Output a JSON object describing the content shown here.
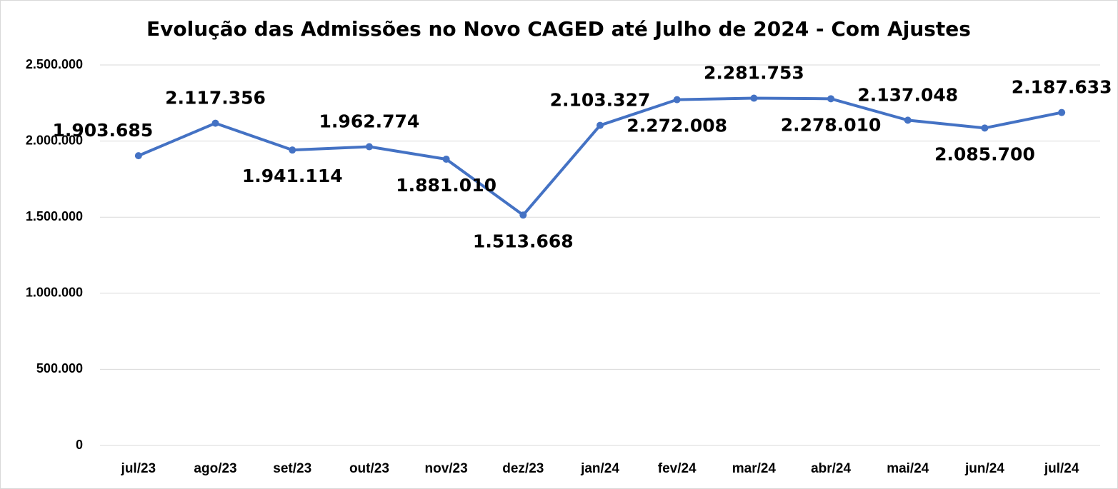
{
  "chart_data": {
    "type": "line",
    "title": "Evolução das Admissões no Novo CAGED até Julho de 2024 - Com Ajustes",
    "categories": [
      "jul/23",
      "ago/23",
      "set/23",
      "out/23",
      "nov/23",
      "dez/23",
      "jan/24",
      "fev/24",
      "mar/24",
      "abr/24",
      "mai/24",
      "jun/24",
      "jul/24"
    ],
    "series": [
      {
        "name": "Admissões",
        "color": "#4472c4",
        "values": [
          1903685,
          2117356,
          1941114,
          1962774,
          1881010,
          1513668,
          2103327,
          2272008,
          2281753,
          2278010,
          2137048,
          2085700,
          2187633
        ],
        "value_labels": [
          "1.903.685",
          "2.117.356",
          "1.941.114",
          "1.962.774",
          "1.881.010",
          "1.513.668",
          "2.103.327",
          "2.272.008",
          "2.281.753",
          "2.278.010",
          "2.137.048",
          "2.085.700",
          "2.187.633"
        ]
      }
    ],
    "ylim": [
      0,
      2500000
    ],
    "yticks": [
      0,
      {
        "value": 500000,
        "label": "500.000"
      },
      {
        "value": 1000000,
        "label": "1.000.000"
      },
      {
        "value": 1500000,
        "label": "1.500.000"
      },
      {
        "value": 2000000,
        "label": "2.000.000"
      },
      {
        "value": 2500000,
        "label": "2.500.000"
      }
    ],
    "grid": true
  }
}
